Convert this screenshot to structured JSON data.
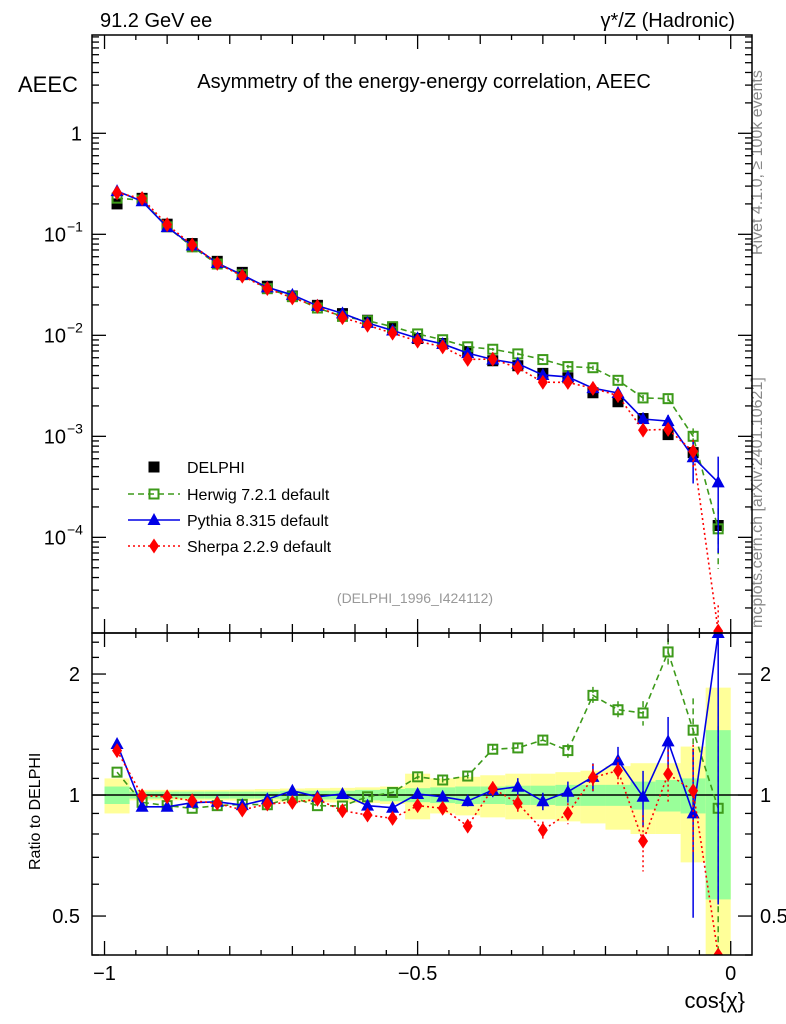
{
  "header": {
    "left": "91.2 GeV ee",
    "right": "γ*/Z (Hadronic)",
    "side_rivet": "Rivet 4.1.0, ≥ 100k events",
    "side_mcplots": "mcplots.cern.ch [arXiv:2401.10621]",
    "analysis_id": "(DELPHI_1996_I424112)"
  },
  "chart_data": {
    "type": "scatter",
    "title": "Asymmetry of the energy-energy correlation, AEEC",
    "ylabel": "AEEC",
    "xlabel": "cos{χ}",
    "ratio_ylabel": "Ratio to DELPHI",
    "xlim": [
      -1.02,
      0.034
    ],
    "ylim": [
      1.13e-05,
      9.4
    ],
    "ratio_ylim": [
      0.4,
      2.53
    ],
    "yscale": "log",
    "ratio_yscale": "log",
    "x_ticks": [
      {
        "v": -1,
        "label": "−1"
      },
      {
        "v": -0.5,
        "label": "−0.5"
      },
      {
        "v": 0,
        "label": "0"
      }
    ],
    "y_ticks": [
      {
        "v": 1,
        "label": "1"
      },
      {
        "v": 0.1,
        "label": "10",
        "exp": "−1"
      },
      {
        "v": 0.01,
        "label": "10",
        "exp": "−2"
      },
      {
        "v": 0.001,
        "label": "10",
        "exp": "−3"
      },
      {
        "v": 0.0001,
        "label": "10",
        "exp": "−4"
      }
    ],
    "ratio_ticks": [
      {
        "v": 2,
        "label": "2"
      },
      {
        "v": 1,
        "label": "1"
      },
      {
        "v": 0.5,
        "label": "0.5"
      }
    ],
    "legend_position": "lower-left",
    "x": [
      -0.98,
      -0.94,
      -0.9,
      -0.86,
      -0.82,
      -0.78,
      -0.74,
      -0.7,
      -0.66,
      -0.62,
      -0.58,
      -0.54,
      -0.5,
      -0.46,
      -0.42,
      -0.38,
      -0.34,
      -0.3,
      -0.26,
      -0.22,
      -0.18,
      -0.14,
      -0.1,
      -0.06,
      -0.02
    ],
    "bin_width": 0.04,
    "data": {
      "name": "DELPHI",
      "color": "#000000",
      "values": [
        0.2,
        0.227,
        0.126,
        0.081,
        0.054,
        0.042,
        0.0306,
        0.0245,
        0.0198,
        0.0164,
        0.0141,
        0.012,
        0.0093,
        0.0083,
        0.0069,
        0.0056,
        0.005,
        0.0042,
        0.0038,
        0.0027,
        0.0022,
        0.0015,
        0.00104,
        0.00069,
        0.000131
      ],
      "rel_err_stat": [
        0.05,
        0.02,
        0.02,
        0.02,
        0.02,
        0.02,
        0.02,
        0.025,
        0.025,
        0.025,
        0.03,
        0.035,
        0.04,
        0.045,
        0.05,
        0.05,
        0.055,
        0.055,
        0.06,
        0.06,
        0.06,
        0.08,
        0.09,
        0.1,
        0.45
      ],
      "rel_err_total": [
        0.1,
        0.03,
        0.03,
        0.03,
        0.03,
        0.032,
        0.035,
        0.038,
        0.04,
        0.042,
        0.045,
        0.05,
        0.13,
        0.1,
        0.11,
        0.12,
        0.13,
        0.13,
        0.14,
        0.15,
        0.18,
        0.2,
        0.2,
        0.32,
        0.85
      ]
    },
    "series": [
      {
        "name": "Herwig 7.2.1 default",
        "color": "#3d9a1a",
        "marker": "open-square",
        "line": "dashed",
        "ratio": [
          1.14,
          0.959,
          0.941,
          0.927,
          0.941,
          0.948,
          0.946,
          0.985,
          0.941,
          0.939,
          0.99,
          1.015,
          1.11,
          1.09,
          1.115,
          1.3,
          1.31,
          1.37,
          1.29,
          1.77,
          1.63,
          1.6,
          2.27,
          1.45,
          0.927
        ],
        "rel_err": [
          0.01,
          0.01,
          0.01,
          0.01,
          0.01,
          0.01,
          0.01,
          0.01,
          0.01,
          0.01,
          0.01,
          0.01,
          0.02,
          0.02,
          0.02,
          0.03,
          0.03,
          0.03,
          0.04,
          0.05,
          0.05,
          0.07,
          0.08,
          0.2,
          0.6
        ]
      },
      {
        "name": "Pythia 8.315 default",
        "color": "#0000e6",
        "marker": "triangle",
        "line": "solid",
        "ratio": [
          1.34,
          0.935,
          0.935,
          0.957,
          0.962,
          0.944,
          0.976,
          1.025,
          0.99,
          1.006,
          0.941,
          0.93,
          1.006,
          0.99,
          0.966,
          1.029,
          1.049,
          0.965,
          1.019,
          1.11,
          1.22,
          0.99,
          1.36,
          0.9,
          2.67
        ],
        "rel_err": [
          0.01,
          0.01,
          0.01,
          0.01,
          0.01,
          0.01,
          0.01,
          0.01,
          0.01,
          0.01,
          0.01,
          0.02,
          0.02,
          0.03,
          0.03,
          0.04,
          0.05,
          0.05,
          0.06,
          0.08,
          0.08,
          0.16,
          0.15,
          0.45,
          0.8
        ]
      },
      {
        "name": "Sherpa 2.2.9 default",
        "color": "#ff0000",
        "marker": "diamond",
        "line": "dotted",
        "ratio": [
          1.29,
          0.996,
          0.99,
          0.968,
          0.954,
          0.918,
          0.95,
          0.959,
          0.976,
          0.914,
          0.892,
          0.875,
          0.941,
          0.927,
          0.837,
          1.039,
          0.954,
          0.818,
          0.9,
          1.106,
          1.15,
          0.768,
          1.128,
          1.025,
          0.09
        ],
        "rel_err": [
          0.01,
          0.01,
          0.01,
          0.01,
          0.01,
          0.01,
          0.01,
          0.01,
          0.01,
          0.01,
          0.01,
          0.02,
          0.02,
          0.03,
          0.03,
          0.04,
          0.05,
          0.05,
          0.06,
          0.08,
          0.08,
          0.16,
          0.15,
          0.3,
          0.8
        ]
      }
    ]
  }
}
